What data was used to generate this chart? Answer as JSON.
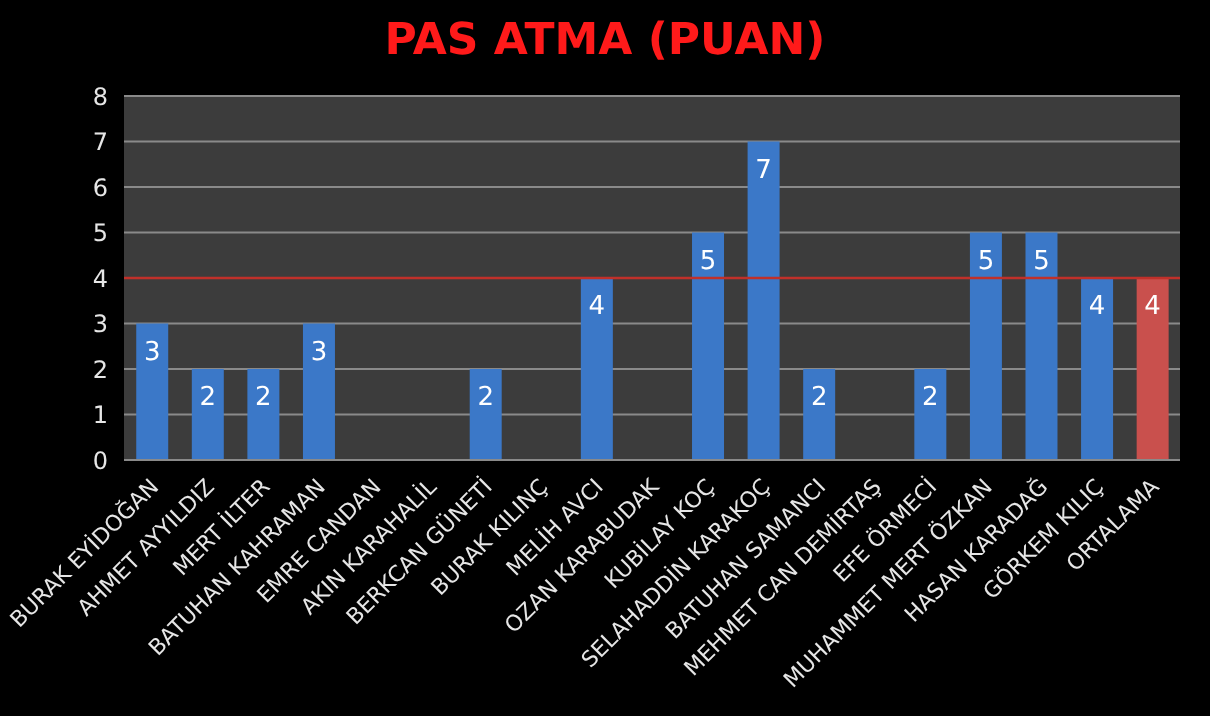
{
  "chart_data": {
    "type": "bar",
    "title": "PAS ATMA (PUAN)",
    "categories": [
      "BURAK EYİDOĞAN",
      "AHMET AYYILDIZ",
      "MERT İLTER",
      "BATUHAN KAHRAMAN",
      "EMRE CANDAN",
      "AKIN KARAHALİL",
      "BERKCAN GÜNETİ",
      "BURAK KILINÇ",
      "MELİH AVCI",
      "OZAN KARABUDAK",
      "KUBİLAY KOÇ",
      "SELAHADDİN KARAKOÇ",
      "BATUHAN SAMANCI",
      "MEHMET CAN DEMİRTAŞ",
      "EFE ÖRMECİ",
      "MUHAMMET MERT ÖZKAN",
      "HASAN KARADAĞ",
      "GÖRKEM KILIÇ",
      "ORTALAMA"
    ],
    "values": [
      3,
      2,
      2,
      3,
      0,
      0,
      2,
      0,
      4,
      0,
      5,
      7,
      2,
      0,
      2,
      5,
      5,
      4,
      4
    ],
    "value_labels": [
      "3",
      "2",
      "2",
      "3",
      null,
      null,
      "2",
      null,
      "4",
      null,
      "5",
      "7",
      "2",
      null,
      "2",
      "5",
      "5",
      "4",
      "4"
    ],
    "colors": [
      "#3b78c8",
      "#3b78c8",
      "#3b78c8",
      "#3b78c8",
      "#3b78c8",
      "#3b78c8",
      "#3b78c8",
      "#3b78c8",
      "#3b78c8",
      "#3b78c8",
      "#3b78c8",
      "#3b78c8",
      "#3b78c8",
      "#3b78c8",
      "#3b78c8",
      "#3b78c8",
      "#3b78c8",
      "#3b78c8",
      "#c9504d"
    ],
    "ylim": [
      0,
      8
    ],
    "yticks": [
      0,
      1,
      2,
      3,
      4,
      5,
      6,
      7,
      8
    ],
    "grid": "y",
    "ref_lines": [
      {
        "axis": "y",
        "value": 4,
        "color": "#c0302a"
      }
    ]
  }
}
